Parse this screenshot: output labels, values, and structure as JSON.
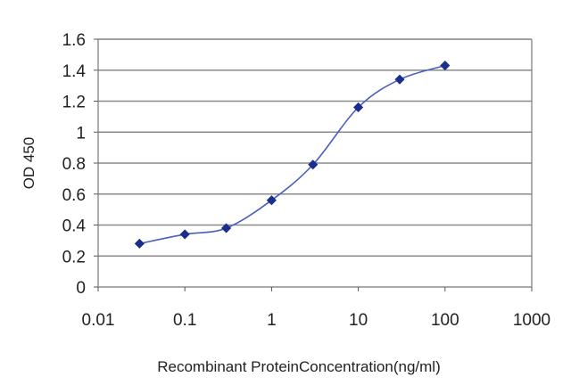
{
  "chart_data": {
    "type": "line",
    "title": "",
    "xlabel": "Recombinant ProteinConcentration(ng/ml)",
    "ylabel": "OD 450",
    "x_scale": "log",
    "xlim": [
      0.01,
      1000
    ],
    "ylim": [
      0,
      1.6
    ],
    "x_ticks": [
      "0.01",
      "0.1",
      "1",
      "10",
      "100",
      "1000"
    ],
    "y_ticks": [
      "0",
      "0.2",
      "0.4",
      "0.6",
      "0.8",
      "1",
      "1.2",
      "1.4",
      "1.6"
    ],
    "grid": "horizontal",
    "legend": "none",
    "series": [
      {
        "color": "#1a2f8c",
        "marker": "diamond",
        "points": [
          {
            "x": 0.03,
            "y": 0.28
          },
          {
            "x": 0.1,
            "y": 0.34
          },
          {
            "x": 0.3,
            "y": 0.38
          },
          {
            "x": 1,
            "y": 0.56
          },
          {
            "x": 3,
            "y": 0.79
          },
          {
            "x": 10,
            "y": 1.16
          },
          {
            "x": 30,
            "y": 1.34
          },
          {
            "x": 100,
            "y": 1.43
          }
        ]
      }
    ]
  }
}
